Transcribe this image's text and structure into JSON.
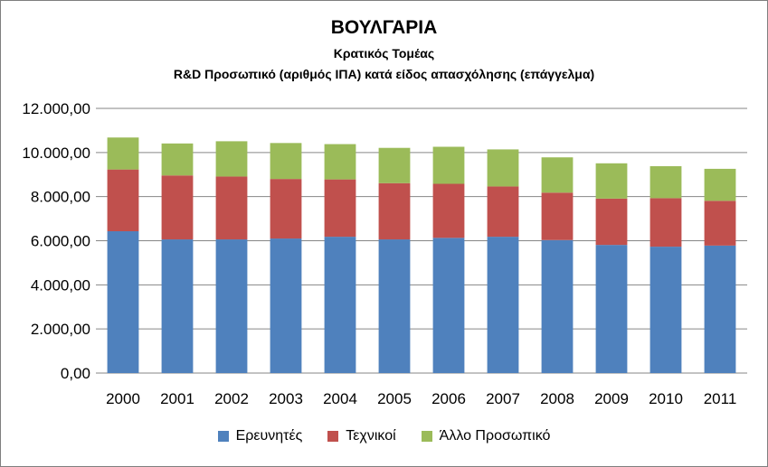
{
  "chart_data": {
    "type": "bar",
    "stacked": true,
    "title": "ΒΟΥΛΓΑΡΙΑ",
    "subtitle": "Κρατικός Τομέας",
    "subtitle2": "R&D  Προσωπικό (αριθμός ΙΠΑ) κατά είδος απασχόλησης (επάγγελμα)",
    "categories": [
      "2000",
      "2001",
      "2002",
      "2003",
      "2004",
      "2005",
      "2006",
      "2007",
      "2008",
      "2009",
      "2010",
      "2011"
    ],
    "series": [
      {
        "name": "Ερευνητές",
        "color": "#4f81bd",
        "values": [
          6430,
          6060,
          6060,
          6100,
          6180,
          6060,
          6130,
          6180,
          6030,
          5810,
          5730,
          5780
        ]
      },
      {
        "name": "Τεχνικοί",
        "color": "#c0504d",
        "values": [
          2800,
          2900,
          2850,
          2700,
          2600,
          2550,
          2450,
          2280,
          2150,
          2100,
          2200,
          2030
        ]
      },
      {
        "name": "Άλλο Προσωπικό",
        "color": "#9bbb59",
        "values": [
          1450,
          1450,
          1600,
          1630,
          1600,
          1600,
          1680,
          1680,
          1600,
          1600,
          1450,
          1450
        ]
      }
    ],
    "ylim": [
      0,
      12000
    ],
    "yticks": [
      "0,00",
      "2.000,00",
      "4.000,00",
      "6.000,00",
      "8.000,00",
      "10.000,00",
      "12.000,00"
    ],
    "grid": true,
    "legend_position": "bottom"
  }
}
